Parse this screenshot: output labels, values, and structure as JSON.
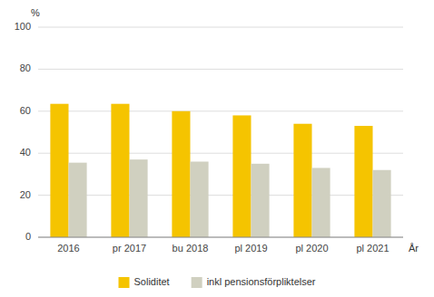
{
  "chart_data": {
    "type": "bar",
    "categories": [
      "2016",
      "pr 2017",
      "bu 2018",
      "pl 2019",
      "pl 2020",
      "pl 2021"
    ],
    "series": [
      {
        "name": "Soliditet",
        "color": "#F5C400",
        "values": [
          63.5,
          63.5,
          60,
          58,
          54,
          53
        ]
      },
      {
        "name": "inkl pensionsförpliktelser",
        "color": "#D0D0C0",
        "values": [
          35.5,
          37,
          36,
          35,
          33,
          32
        ]
      }
    ],
    "xlabel": "År",
    "ylabel": "%",
    "ylim": [
      0,
      100
    ],
    "yticks": [
      0,
      20,
      40,
      60,
      80,
      100
    ],
    "grid": true,
    "legend": "bottom"
  }
}
